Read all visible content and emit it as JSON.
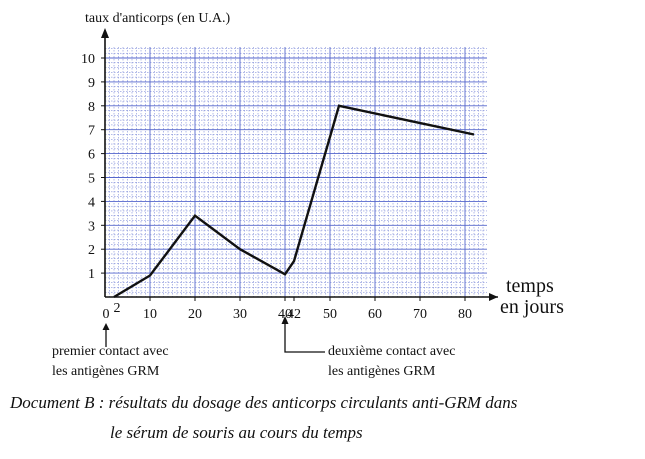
{
  "chart_data": {
    "type": "line",
    "ylabel": "taux d'anticorps (en U.A.)",
    "xlabel_lines": [
      "temps",
      "en jours"
    ],
    "x": [
      2,
      10,
      20,
      30,
      40,
      42,
      52,
      82
    ],
    "y": [
      0.0,
      0.9,
      3.4,
      2.0,
      0.95,
      1.5,
      8.0,
      6.8
    ],
    "xlim": [
      0,
      85
    ],
    "ylim": [
      0,
      10
    ],
    "x_ticks": [
      0,
      2,
      10,
      20,
      30,
      40,
      42,
      50,
      60,
      70,
      80
    ],
    "y_ticks": [
      1,
      2,
      3,
      4,
      5,
      6,
      7,
      8,
      9,
      10
    ],
    "grid": true,
    "series_color": "#111111",
    "grid_color": "#5566cc",
    "annotations": [
      {
        "x": 0,
        "lines": [
          "premier contact avec",
          "les antigènes GRM"
        ]
      },
      {
        "x": 40,
        "lines": [
          "deuxième contact avec",
          "les antigènes GRM"
        ]
      }
    ]
  },
  "caption": {
    "line1": "Document B : résultats du dosage des anticorps circulants anti-GRM dans",
    "line2": "le sérum de souris au cours du temps"
  }
}
